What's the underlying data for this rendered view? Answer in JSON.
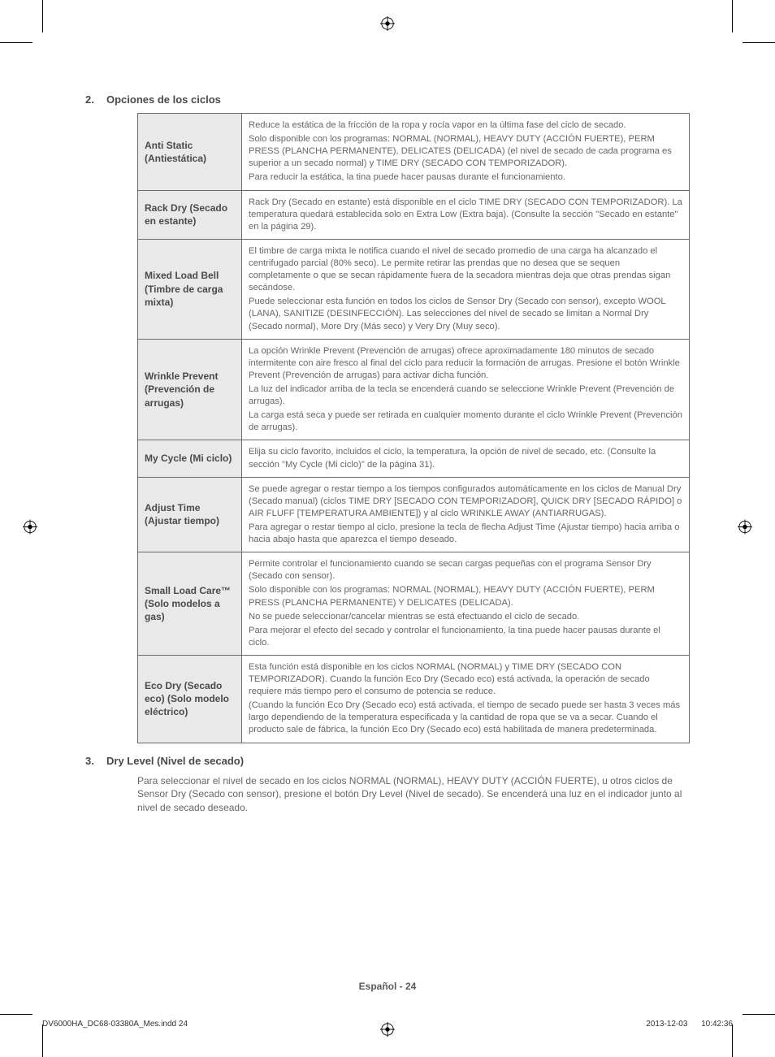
{
  "section2": {
    "num": "2.",
    "title": "Opciones de los ciclos"
  },
  "rows": [
    {
      "label": "Anti Static (Antiestática)",
      "paras": [
        "Reduce la estática de la fricción de la ropa y rocía vapor en la última fase del ciclo de secado.",
        "Solo disponible con los programas: NORMAL (NORMAL), HEAVY DUTY (ACCIÓN FUERTE), PERM PRESS  (PLANCHA PERMANENTE), DELICATES (DELICADA) (el nivel de secado de cada programa es superior a un secado normal) y TIME DRY (SECADO CON TEMPORIZADOR).",
        "Para reducir la estática, la tina puede hacer pausas durante el funcionamiento."
      ]
    },
    {
      "label": "Rack Dry (Secado en estante)",
      "paras": [
        "Rack Dry (Secado en estante) está disponible en el ciclo TIME DRY (SECADO CON TEMPORIZADOR). La temperatura quedará establecida solo en Extra Low (Extra baja). (Consulte la sección \"Secado en estante\" en la página 29)."
      ]
    },
    {
      "label": "Mixed Load Bell (Timbre de carga mixta)",
      "paras": [
        "El timbre de carga mixta le notifica cuando el nivel de secado promedio de una carga ha alcanzado el centrifugado parcial (80% seco). Le permite retirar las prendas que no desea que se sequen completamente o que se secan rápidamente fuera de la secadora mientras deja que otras prendas sigan secándose.",
        "Puede seleccionar esta función en todos los ciclos de Sensor Dry (Secado con sensor), excepto WOOL (LANA), SANITIZE (DESINFECCIÓN). Las selecciones del nivel de secado se limitan a Normal Dry (Secado normal), More Dry (Más seco) y Very Dry (Muy seco)."
      ]
    },
    {
      "label": "Wrinkle Prevent (Prevención de arrugas)",
      "paras": [
        "La opción Wrinkle Prevent (Prevención de arrugas) ofrece aproximadamente 180 minutos de secado intermitente con aire fresco al final del ciclo para reducir la formación de arrugas. Presione el botón Wrinkle Prevent (Prevención de arrugas) para activar dicha función.",
        "La luz del indicador arriba de la tecla se encenderá cuando se seleccione Wrinkle Prevent (Prevención de arrugas).",
        "La carga está seca y puede ser retirada en cualquier momento durante el ciclo Wrinkle Prevent (Prevención de arrugas)."
      ]
    },
    {
      "label": "My Cycle (Mi ciclo)",
      "paras": [
        "Elija su ciclo favorito, incluidos el ciclo, la temperatura, la opción de nivel de secado, etc. (Consulte la sección \"My Cycle (Mi ciclo)\" de la página 31)."
      ]
    },
    {
      "label": "Adjust Time (Ajustar tiempo)",
      "paras": [
        "Se puede agregar o restar tiempo a los tiempos configurados automáticamente en los ciclos de Manual Dry (Secado manual) (ciclos TIME DRY [SECADO CON TEMPORIZADOR], QUICK DRY [SECADO RÁPIDO] o AIR FLUFF [TEMPERATURA AMBIENTE]) y al ciclo WRINKLE AWAY (ANTIARRUGAS).",
        "Para agregar o restar tiempo al ciclo, presione la tecla de flecha Adjust Time (Ajustar tiempo) hacia arriba o hacia abajo hasta que aparezca el tiempo deseado."
      ]
    },
    {
      "label": "Small Load Care™ (Solo modelos a gas)",
      "paras": [
        "Permite controlar el funcionamiento cuando se secan cargas pequeñas con el programa Sensor Dry (Secado con sensor).",
        "Solo disponible con los programas: NORMAL (NORMAL), HEAVY DUTY (ACCIÓN FUERTE), PERM PRESS (PLANCHA PERMANENTE) Y DELICATES (DELICADA).",
        "No se puede seleccionar/cancelar mientras se está efectuando el ciclo de secado.",
        "Para mejorar el efecto del secado y controlar el funcionamiento, la tina puede hacer pausas durante el ciclo."
      ]
    },
    {
      "label": "Eco Dry (Secado eco)\n(Solo modelo eléctrico)",
      "paras": [
        "Esta función está disponible en los ciclos NORMAL (NORMAL) y TIME DRY (SECADO CON TEMPORIZADOR). Cuando la función Eco Dry (Secado eco) está activada, la operación de secado requiere más tiempo pero el consumo de potencia se reduce.",
        "(Cuando la función Eco Dry (Secado eco) está activada, el tiempo de secado puede ser hasta 3 veces más largo dependiendo de la temperatura especificada y la cantidad de ropa que se va a secar. Cuando el producto sale de fábrica, la función Eco Dry (Secado eco) está habilitada de manera predeterminada."
      ]
    }
  ],
  "section3": {
    "num": "3.",
    "title": "Dry Level (Nivel de secado)",
    "body": "Para seleccionar el nivel de secado en los ciclos NORMAL (NORMAL), HEAVY DUTY (ACCIÓN FUERTE), u otros ciclos de Sensor Dry (Secado con sensor), presione el botón Dry Level (Nivel de secado). Se encenderá una luz en el indicador junto al nivel de secado deseado."
  },
  "footer": {
    "center": "Español - 24",
    "left": "DV6000HA_DC68-03380A_Mes.indd   24",
    "right": "2013-12-03      10:42:36"
  }
}
